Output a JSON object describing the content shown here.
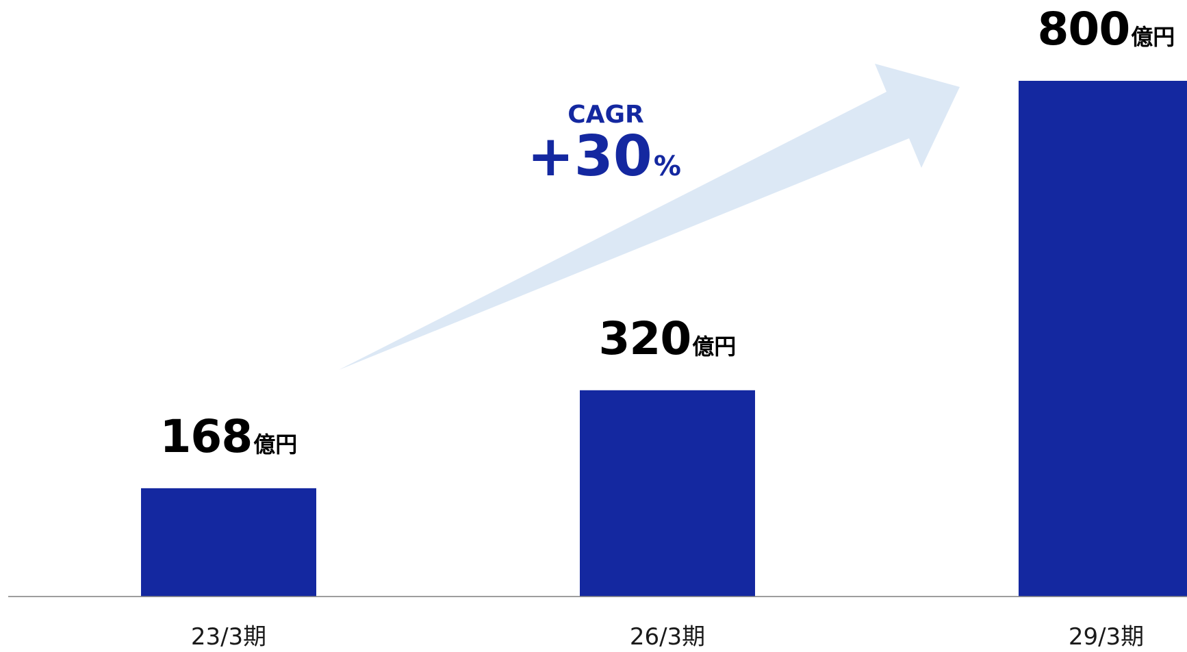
{
  "chart_data": {
    "type": "bar",
    "categories": [
      "23/3期",
      "26/3期",
      "29/3期"
    ],
    "values": [
      168,
      320,
      800
    ],
    "value_unit": "億円",
    "ylim": [
      0,
      800
    ],
    "grid": false,
    "annotation": {
      "label": "CAGR",
      "value": "+30",
      "unit": "%"
    },
    "colors": {
      "bar": "#1428a0",
      "arrow": "#dce8f5",
      "annotation_text": "#1428a0",
      "axis": "#7f7f7f"
    }
  }
}
